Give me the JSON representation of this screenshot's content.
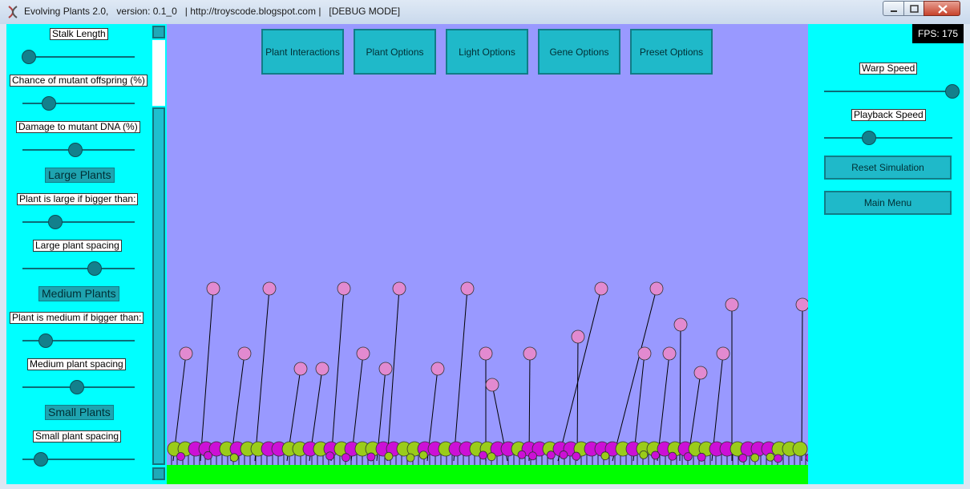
{
  "window": {
    "title": "Evolving Plants 2.0,   version: 0.1_0   | http://troyscode.blogspot.com |   [DEBUG MODE]",
    "icon": "dna-icon"
  },
  "left_panel": {
    "stalk_length": {
      "label": "Stalk Length",
      "value_fraction": 0.05
    },
    "mutant_chance": {
      "label": "Chance of mutant offspring (%)",
      "value_fraction": 0.23
    },
    "mutant_damage": {
      "label": "Damage to mutant DNA (%)",
      "value_fraction": 0.47
    },
    "large_section": "Large Plants",
    "large_threshold": {
      "label": "Plant is large if bigger than:",
      "value_fraction": 0.28
    },
    "large_spacing": {
      "label": "Large plant spacing",
      "value_fraction": 0.63
    },
    "medium_section": "Medium Plants",
    "medium_threshold": {
      "label": "Plant is medium if bigger than:",
      "value_fraction": 0.2
    },
    "medium_spacing": {
      "label": "Medium plant spacing",
      "value_fraction": 0.48
    },
    "small_section": "Small Plants",
    "small_spacing": {
      "label": "Small plant spacing",
      "value_fraction": 0.1
    }
  },
  "top_buttons": [
    "Plant Interactions",
    "Plant Options",
    "Light Options",
    "Gene Options",
    "Preset Options"
  ],
  "right_panel": {
    "fps": "FPS: 175",
    "warp_speed": {
      "label": "Warp Speed",
      "value_fraction": 0.98
    },
    "playback_speed": {
      "label": "Playback Speed",
      "value_fraction": 0.35
    },
    "reset_button": "Reset Simulation",
    "main_menu_button": "Main Menu"
  },
  "colors": {
    "panel": "#00ffff",
    "sky": "#9999ff",
    "ground": "#00ff00",
    "button": "#1fb9c9",
    "pink_flower": "#e28ad0",
    "green_plant": "#9acc1a",
    "magenta_plant": "#cc10d6"
  }
}
